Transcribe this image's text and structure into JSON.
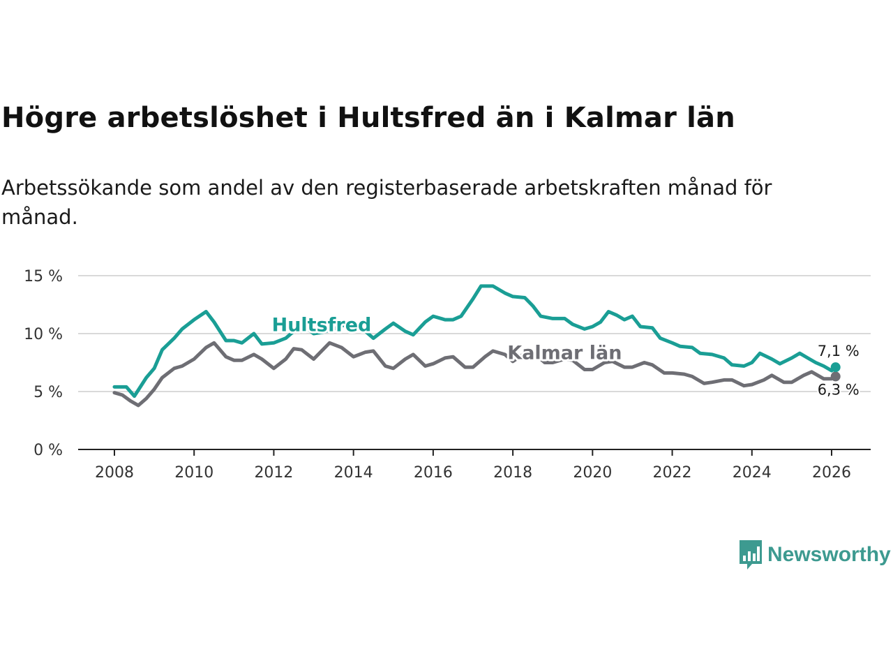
{
  "title": "Högre arbetslöshet i Hultsfred än i Kalmar län",
  "subtitle": "Arbetssökande som andel av den registerbaserade arbetskraften månad för månad.",
  "brand": {
    "name": "Newsworthy",
    "icon": "bar-chart-speech-bubble-icon",
    "color": "#3d9a90"
  },
  "chart_data": {
    "type": "line",
    "title": "Högre arbetslöshet i Hultsfred än i Kalmar län",
    "xlabel": "",
    "ylabel": "",
    "xlim": [
      2007.9,
      2027.0
    ],
    "ylim": [
      0,
      15
    ],
    "grid": true,
    "x_ticks": [
      2008,
      2010,
      2012,
      2014,
      2016,
      2018,
      2020,
      2022,
      2024,
      2026
    ],
    "x_tick_labels": [
      "2008",
      "2010",
      "2012",
      "2014",
      "2016",
      "2018",
      "2020",
      "2022",
      "2024",
      "2026"
    ],
    "y_ticks": [
      0,
      5,
      10,
      15
    ],
    "y_tick_labels": [
      "0 %",
      "5 %",
      "10 %",
      "15 %"
    ],
    "series": [
      {
        "name": "Hultsfred",
        "color": "#1a9e95",
        "label_at": [
          2013.2,
          10.2
        ],
        "end_label": "7,1 %",
        "points": [
          [
            2008.0,
            5.4
          ],
          [
            2008.3,
            5.4
          ],
          [
            2008.5,
            4.6
          ],
          [
            2008.8,
            6.2
          ],
          [
            2009.0,
            7.0
          ],
          [
            2009.2,
            8.6
          ],
          [
            2009.5,
            9.6
          ],
          [
            2009.7,
            10.4
          ],
          [
            2010.0,
            11.2
          ],
          [
            2010.3,
            11.9
          ],
          [
            2010.5,
            11.0
          ],
          [
            2010.8,
            9.4
          ],
          [
            2011.0,
            9.4
          ],
          [
            2011.2,
            9.2
          ],
          [
            2011.5,
            10.0
          ],
          [
            2011.7,
            9.1
          ],
          [
            2012.0,
            9.2
          ],
          [
            2012.3,
            9.6
          ],
          [
            2012.5,
            10.2
          ],
          [
            2012.7,
            10.8
          ],
          [
            2013.0,
            10.0
          ],
          [
            2013.2,
            10.1
          ],
          [
            2013.5,
            10.4
          ],
          [
            2013.7,
            10.7
          ],
          [
            2014.0,
            10.7
          ],
          [
            2014.3,
            10.2
          ],
          [
            2014.5,
            9.6
          ],
          [
            2014.8,
            10.4
          ],
          [
            2015.0,
            10.9
          ],
          [
            2015.3,
            10.2
          ],
          [
            2015.5,
            9.9
          ],
          [
            2015.8,
            11.0
          ],
          [
            2016.0,
            11.5
          ],
          [
            2016.3,
            11.2
          ],
          [
            2016.5,
            11.2
          ],
          [
            2016.7,
            11.5
          ],
          [
            2017.0,
            13.0
          ],
          [
            2017.2,
            14.1
          ],
          [
            2017.5,
            14.1
          ],
          [
            2017.8,
            13.5
          ],
          [
            2018.0,
            13.2
          ],
          [
            2018.3,
            13.1
          ],
          [
            2018.5,
            12.4
          ],
          [
            2018.7,
            11.5
          ],
          [
            2019.0,
            11.3
          ],
          [
            2019.3,
            11.3
          ],
          [
            2019.5,
            10.8
          ],
          [
            2019.8,
            10.4
          ],
          [
            2020.0,
            10.6
          ],
          [
            2020.2,
            11.0
          ],
          [
            2020.4,
            11.9
          ],
          [
            2020.6,
            11.6
          ],
          [
            2020.8,
            11.2
          ],
          [
            2021.0,
            11.5
          ],
          [
            2021.2,
            10.6
          ],
          [
            2021.5,
            10.5
          ],
          [
            2021.7,
            9.6
          ],
          [
            2022.0,
            9.2
          ],
          [
            2022.2,
            8.9
          ],
          [
            2022.5,
            8.8
          ],
          [
            2022.7,
            8.3
          ],
          [
            2023.0,
            8.2
          ],
          [
            2023.3,
            7.9
          ],
          [
            2023.5,
            7.3
          ],
          [
            2023.8,
            7.2
          ],
          [
            2024.0,
            7.5
          ],
          [
            2024.2,
            8.3
          ],
          [
            2024.5,
            7.8
          ],
          [
            2024.7,
            7.4
          ],
          [
            2025.0,
            7.9
          ],
          [
            2025.2,
            8.3
          ],
          [
            2025.4,
            7.9
          ],
          [
            2025.6,
            7.5
          ],
          [
            2025.8,
            7.2
          ],
          [
            2026.0,
            6.8
          ],
          [
            2026.1,
            7.1
          ]
        ]
      },
      {
        "name": "Kalmar län",
        "color": "#6e6e74",
        "label_at": [
          2019.3,
          7.8
        ],
        "end_label": "6,3 %",
        "points": [
          [
            2008.0,
            4.9
          ],
          [
            2008.2,
            4.7
          ],
          [
            2008.4,
            4.2
          ],
          [
            2008.6,
            3.8
          ],
          [
            2008.8,
            4.4
          ],
          [
            2009.0,
            5.2
          ],
          [
            2009.2,
            6.2
          ],
          [
            2009.5,
            7.0
          ],
          [
            2009.7,
            7.2
          ],
          [
            2010.0,
            7.8
          ],
          [
            2010.3,
            8.8
          ],
          [
            2010.5,
            9.2
          ],
          [
            2010.8,
            8.0
          ],
          [
            2011.0,
            7.7
          ],
          [
            2011.2,
            7.7
          ],
          [
            2011.5,
            8.2
          ],
          [
            2011.7,
            7.8
          ],
          [
            2012.0,
            7.0
          ],
          [
            2012.3,
            7.8
          ],
          [
            2012.5,
            8.7
          ],
          [
            2012.7,
            8.6
          ],
          [
            2013.0,
            7.8
          ],
          [
            2013.2,
            8.5
          ],
          [
            2013.4,
            9.2
          ],
          [
            2013.7,
            8.8
          ],
          [
            2014.0,
            8.0
          ],
          [
            2014.3,
            8.4
          ],
          [
            2014.5,
            8.5
          ],
          [
            2014.8,
            7.2
          ],
          [
            2015.0,
            7.0
          ],
          [
            2015.3,
            7.8
          ],
          [
            2015.5,
            8.2
          ],
          [
            2015.8,
            7.2
          ],
          [
            2016.0,
            7.4
          ],
          [
            2016.3,
            7.9
          ],
          [
            2016.5,
            8.0
          ],
          [
            2016.8,
            7.1
          ],
          [
            2017.0,
            7.1
          ],
          [
            2017.3,
            8.0
          ],
          [
            2017.5,
            8.5
          ],
          [
            2017.8,
            8.2
          ],
          [
            2018.0,
            7.6
          ],
          [
            2018.3,
            8.3
          ],
          [
            2018.5,
            8.4
          ],
          [
            2018.8,
            7.5
          ],
          [
            2019.0,
            7.5
          ],
          [
            2019.3,
            7.8
          ],
          [
            2019.5,
            7.7
          ],
          [
            2019.8,
            6.9
          ],
          [
            2020.0,
            6.9
          ],
          [
            2020.3,
            7.5
          ],
          [
            2020.5,
            7.6
          ],
          [
            2020.8,
            7.1
          ],
          [
            2021.0,
            7.1
          ],
          [
            2021.3,
            7.5
          ],
          [
            2021.5,
            7.3
          ],
          [
            2021.8,
            6.6
          ],
          [
            2022.0,
            6.6
          ],
          [
            2022.3,
            6.5
          ],
          [
            2022.5,
            6.3
          ],
          [
            2022.8,
            5.7
          ],
          [
            2023.0,
            5.8
          ],
          [
            2023.3,
            6.0
          ],
          [
            2023.5,
            6.0
          ],
          [
            2023.8,
            5.5
          ],
          [
            2024.0,
            5.6
          ],
          [
            2024.3,
            6.0
          ],
          [
            2024.5,
            6.4
          ],
          [
            2024.8,
            5.8
          ],
          [
            2025.0,
            5.8
          ],
          [
            2025.3,
            6.4
          ],
          [
            2025.5,
            6.7
          ],
          [
            2025.8,
            6.1
          ],
          [
            2026.0,
            6.1
          ],
          [
            2026.1,
            6.3
          ]
        ]
      }
    ]
  }
}
